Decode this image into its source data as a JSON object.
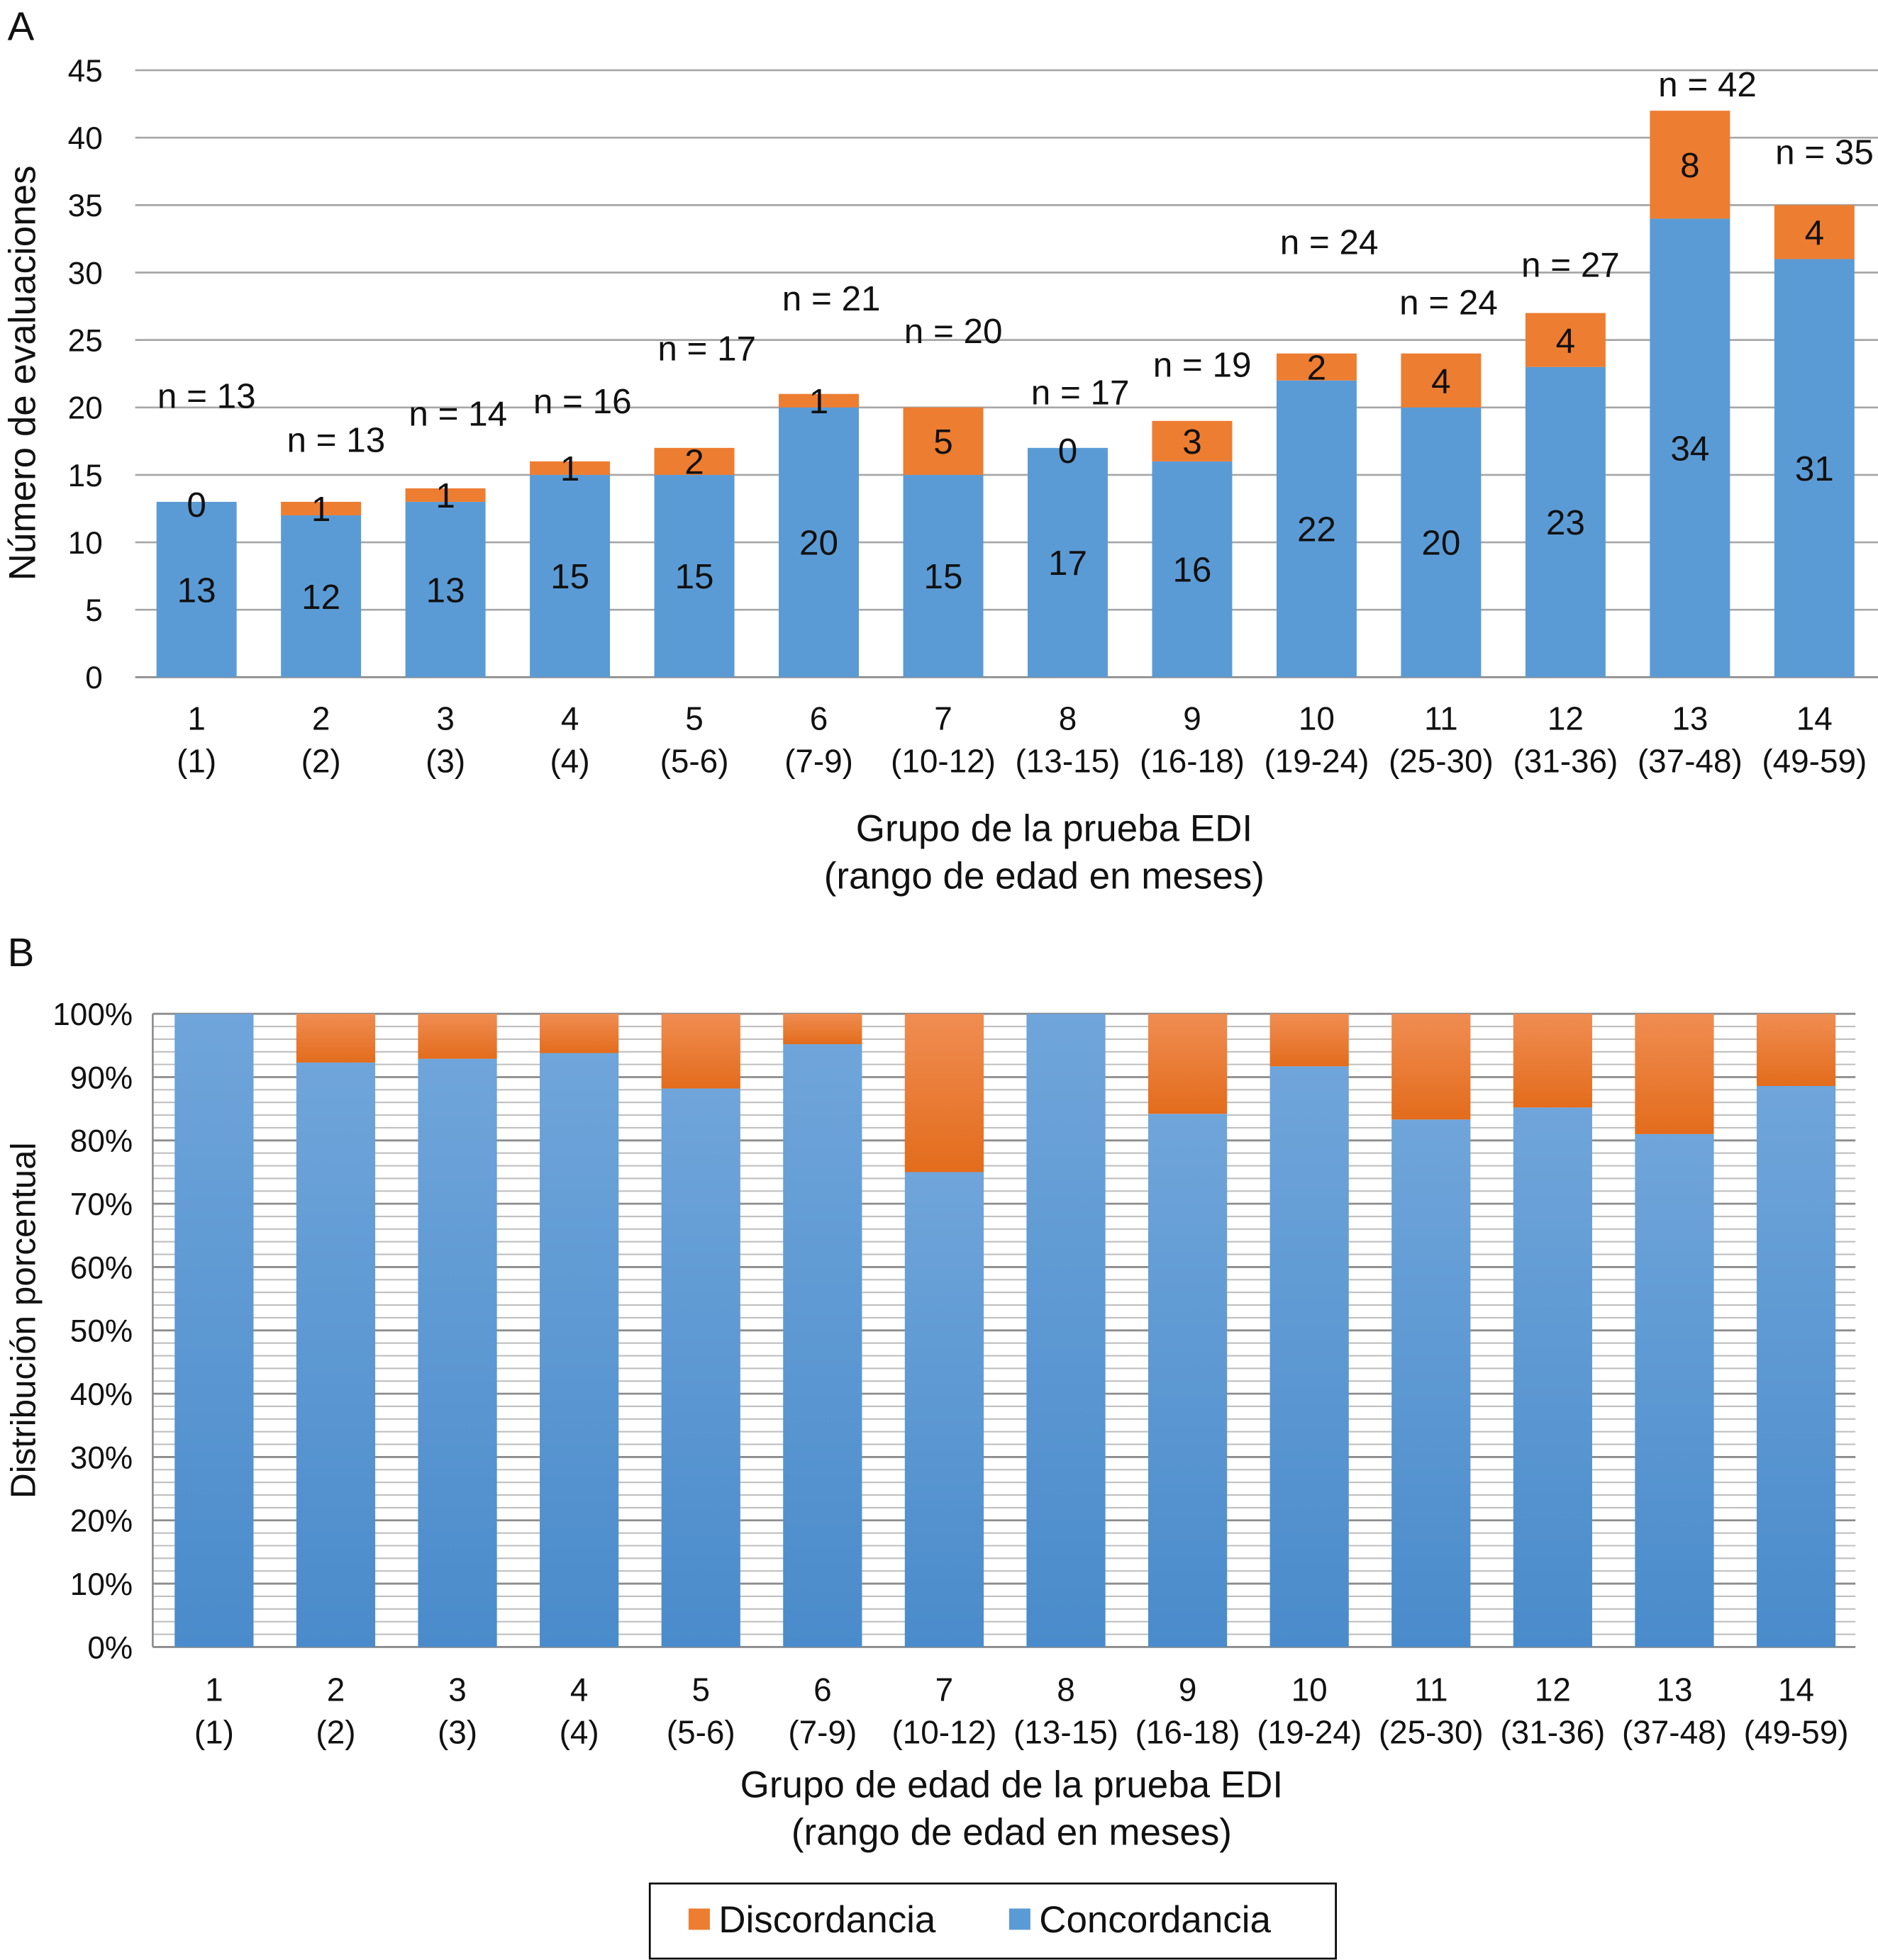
{
  "colors": {
    "discordancia": "#ED7D31",
    "concordancia": "#5B9BD5",
    "grid": "#A6A6A6"
  },
  "chart_data": [
    {
      "panel": "A",
      "type": "bar",
      "stacked": true,
      "xlabel": [
        "Grupo de la prueba EDI",
        "(rango de edad en meses)"
      ],
      "ylabel": "Número de evaluaciones",
      "ylim": [
        0,
        45
      ],
      "yticks": [
        "0",
        "5",
        "10",
        "15",
        "20",
        "25",
        "30",
        "35",
        "40",
        "45"
      ],
      "grid": true,
      "categories": [
        [
          "1",
          "(1)"
        ],
        [
          "2",
          "(2)"
        ],
        [
          "3",
          "(3)"
        ],
        [
          "4",
          "(4)"
        ],
        [
          "5",
          "(5-6)"
        ],
        [
          "6",
          "(7-9)"
        ],
        [
          "7",
          "(10-12)"
        ],
        [
          "8",
          "(13-15)"
        ],
        [
          "9",
          "(16-18)"
        ],
        [
          "10",
          "(19-24)"
        ],
        [
          "11",
          "(25-30)"
        ],
        [
          "12",
          "(31-36)"
        ],
        [
          "13",
          "(37-48)"
        ],
        [
          "14",
          "(49-59)"
        ]
      ],
      "series": [
        {
          "name": "Concordancia",
          "values": [
            13,
            12,
            13,
            15,
            15,
            20,
            15,
            17,
            16,
            22,
            20,
            23,
            34,
            31
          ]
        },
        {
          "name": "Discordancia",
          "values": [
            0,
            1,
            1,
            1,
            2,
            1,
            5,
            0,
            3,
            2,
            4,
            4,
            8,
            4
          ]
        }
      ],
      "totals_labels": [
        "n = 13",
        "n = 13",
        "n = 14",
        "n = 16",
        "n = 17",
        "n = 21",
        "n = 20",
        "n = 17",
        "n = 19",
        "n = 24",
        "n = 24",
        "n = 27",
        "n = 42",
        "n = 35"
      ]
    },
    {
      "panel": "B",
      "type": "bar",
      "stacked": true,
      "percent": true,
      "xlabel": [
        "Grupo de edad de la prueba EDI",
        "(rango de edad en meses)"
      ],
      "ylabel": "Distribución porcentual",
      "ylim": [
        0,
        100
      ],
      "yticks": [
        "0%",
        "10%",
        "20%",
        "30%",
        "40%",
        "50%",
        "60%",
        "70%",
        "80%",
        "90%",
        "100%"
      ],
      "grid": true,
      "categories": [
        [
          "1",
          "(1)"
        ],
        [
          "2",
          "(2)"
        ],
        [
          "3",
          "(3)"
        ],
        [
          "4",
          "(4)"
        ],
        [
          "5",
          "(5-6)"
        ],
        [
          "6",
          "(7-9)"
        ],
        [
          "7",
          "(10-12)"
        ],
        [
          "8",
          "(13-15)"
        ],
        [
          "9",
          "(16-18)"
        ],
        [
          "10",
          "(19-24)"
        ],
        [
          "11",
          "(25-30)"
        ],
        [
          "12",
          "(31-36)"
        ],
        [
          "13",
          "(37-48)"
        ],
        [
          "14",
          "(49-59)"
        ]
      ],
      "series": [
        {
          "name": "Concordancia",
          "values": [
            100,
            92.3,
            92.9,
            93.8,
            88.2,
            95.2,
            75.0,
            100,
            84.2,
            91.7,
            83.3,
            85.2,
            81.0,
            88.6
          ]
        },
        {
          "name": "Discordancia",
          "values": [
            0,
            7.7,
            7.1,
            6.3,
            11.8,
            4.8,
            25.0,
            0,
            15.8,
            8.3,
            16.7,
            14.8,
            19.0,
            11.4
          ]
        }
      ]
    }
  ],
  "legend": {
    "placement": "bottom",
    "items": [
      "Discordancia",
      "Concordancia"
    ]
  }
}
